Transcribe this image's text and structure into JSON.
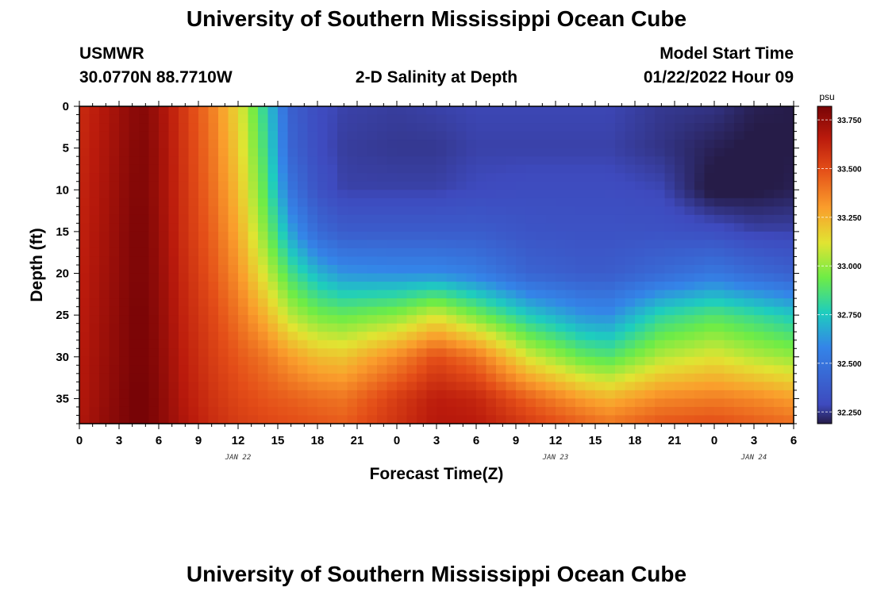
{
  "page": {
    "title": "University of Southern Mississippi Ocean Cube",
    "station": "USMWR",
    "coords": "30.0770N  88.7710W",
    "subtitle": "2-D Salinity at Depth",
    "model_label": "Model Start Time",
    "model_time": "01/22/2022 Hour 09",
    "footer_title": "University of Southern Mississippi Ocean Cube"
  },
  "chart_data": {
    "type": "heatmap",
    "xlabel": "Forecast Time(Z)",
    "ylabel": "Depth (ft)",
    "x_range_hours": [
      0,
      54
    ],
    "y_range_ft": [
      0,
      38
    ],
    "y_inverted": true,
    "x_ticks": [
      {
        "h": 0,
        "label": "0"
      },
      {
        "h": 3,
        "label": "3"
      },
      {
        "h": 6,
        "label": "6"
      },
      {
        "h": 9,
        "label": "9"
      },
      {
        "h": 12,
        "label": "12"
      },
      {
        "h": 15,
        "label": "15"
      },
      {
        "h": 18,
        "label": "18"
      },
      {
        "h": 21,
        "label": "21"
      },
      {
        "h": 24,
        "label": "0"
      },
      {
        "h": 27,
        "label": "3"
      },
      {
        "h": 30,
        "label": "6"
      },
      {
        "h": 33,
        "label": "9"
      },
      {
        "h": 36,
        "label": "12"
      },
      {
        "h": 39,
        "label": "15"
      },
      {
        "h": 42,
        "label": "18"
      },
      {
        "h": 45,
        "label": "21"
      },
      {
        "h": 48,
        "label": "0"
      },
      {
        "h": 51,
        "label": "3"
      },
      {
        "h": 54,
        "label": "6"
      }
    ],
    "date_labels": [
      {
        "h": 12,
        "label": "JAN 22"
      },
      {
        "h": 36,
        "label": "JAN 23"
      },
      {
        "h": 51,
        "label": "JAN 24"
      }
    ],
    "y_ticks": [
      0,
      5,
      10,
      15,
      20,
      25,
      30,
      35
    ],
    "colorbar": {
      "unit": "psu",
      "min": 32.19,
      "max": 33.82,
      "ticks": [
        {
          "v": 33.75,
          "label": "33.750"
        },
        {
          "v": 33.5,
          "label": "33.500"
        },
        {
          "v": 33.25,
          "label": "33.250"
        },
        {
          "v": 33.0,
          "label": "33.000"
        },
        {
          "v": 32.75,
          "label": "32.750"
        },
        {
          "v": 32.5,
          "label": "32.500"
        },
        {
          "v": 32.25,
          "label": "32.250"
        }
      ]
    },
    "profile_hours": [
      0,
      2,
      4,
      5,
      6,
      8,
      10,
      12,
      14,
      16,
      18,
      20,
      24,
      27,
      30,
      34,
      38,
      40,
      44,
      48,
      51,
      54
    ],
    "profile_depths_ft": [
      0,
      5,
      10,
      15,
      20,
      25,
      30,
      35,
      38
    ],
    "salinity_psu": [
      [
        33.6,
        33.61,
        33.62,
        33.63,
        33.64,
        33.65,
        33.66,
        33.67,
        33.68
      ],
      [
        33.68,
        33.69,
        33.7,
        33.71,
        33.72,
        33.73,
        33.74,
        33.75,
        33.76
      ],
      [
        33.77,
        33.78,
        33.79,
        33.8,
        33.8,
        33.81,
        33.81,
        33.82,
        33.82
      ],
      [
        33.78,
        33.79,
        33.79,
        33.8,
        33.8,
        33.81,
        33.81,
        33.82,
        33.82
      ],
      [
        33.72,
        33.73,
        33.73,
        33.74,
        33.75,
        33.76,
        33.77,
        33.78,
        33.78
      ],
      [
        33.55,
        33.56,
        33.57,
        33.58,
        33.6,
        33.62,
        33.64,
        33.66,
        33.68
      ],
      [
        33.38,
        33.4,
        33.42,
        33.45,
        33.48,
        33.52,
        33.55,
        33.58,
        33.6
      ],
      [
        33.15,
        33.18,
        33.22,
        33.27,
        33.33,
        33.4,
        33.47,
        33.52,
        33.55
      ],
      [
        32.8,
        32.85,
        32.9,
        32.98,
        33.1,
        33.25,
        33.4,
        33.48,
        33.52
      ],
      [
        32.4,
        32.42,
        32.5,
        32.65,
        32.85,
        33.05,
        33.3,
        33.45,
        33.5
      ],
      [
        32.3,
        32.3,
        32.33,
        32.45,
        32.7,
        32.95,
        33.22,
        33.42,
        33.48
      ],
      [
        32.27,
        32.26,
        32.27,
        32.38,
        32.62,
        32.92,
        33.2,
        33.4,
        33.46
      ],
      [
        32.26,
        32.25,
        32.27,
        32.38,
        32.6,
        32.98,
        33.35,
        33.55,
        33.58
      ],
      [
        32.27,
        32.25,
        32.27,
        32.38,
        32.6,
        33.1,
        33.5,
        33.65,
        33.67
      ],
      [
        32.28,
        32.27,
        32.29,
        32.38,
        32.55,
        32.95,
        33.4,
        33.62,
        33.66
      ],
      [
        32.28,
        32.27,
        32.3,
        32.34,
        32.42,
        32.75,
        33.1,
        33.45,
        33.55
      ],
      [
        32.28,
        32.27,
        32.3,
        32.33,
        32.38,
        32.62,
        32.92,
        33.3,
        33.45
      ],
      [
        32.28,
        32.27,
        32.3,
        32.33,
        32.38,
        32.6,
        32.88,
        33.25,
        33.4
      ],
      [
        32.25,
        32.24,
        32.28,
        32.33,
        32.45,
        32.8,
        33.05,
        33.35,
        33.48
      ],
      [
        32.24,
        32.2,
        32.17,
        32.31,
        32.52,
        32.88,
        33.12,
        33.38,
        33.5
      ],
      [
        32.2,
        32.18,
        32.18,
        32.27,
        32.45,
        32.82,
        33.05,
        33.35,
        33.46
      ],
      [
        32.19,
        32.19,
        32.2,
        32.27,
        32.4,
        32.75,
        33.0,
        33.3,
        33.42
      ]
    ],
    "grid": false,
    "legend": "right"
  }
}
